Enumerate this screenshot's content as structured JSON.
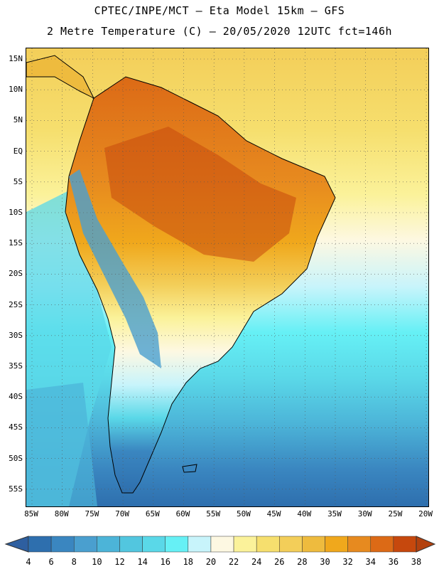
{
  "header": {
    "line1": "CPTEC/INPE/MCT –  Eta Model 15km – GFS",
    "line2": "2 Metre Temperature (C) – 20/05/2020 12UTC fct=146h"
  },
  "map": {
    "lat_labels": [
      "15N",
      "10N",
      "5N",
      "EQ",
      "5S",
      "10S",
      "15S",
      "20S",
      "25S",
      "30S",
      "35S",
      "40S",
      "45S",
      "50S",
      "55S"
    ],
    "lon_labels": [
      "85W",
      "80W",
      "75W",
      "70W",
      "65W",
      "60W",
      "55W",
      "50W",
      "45W",
      "40W",
      "35W",
      "30W",
      "25W",
      "20W"
    ]
  },
  "colorbar": {
    "labels": [
      "4",
      "6",
      "8",
      "10",
      "12",
      "14",
      "16",
      "18",
      "20",
      "22",
      "24",
      "26",
      "28",
      "30",
      "32",
      "34",
      "36",
      "38"
    ],
    "colors": [
      "#2e6fae",
      "#3a86c0",
      "#4a9fcf",
      "#4cb4d8",
      "#52c6df",
      "#5ad8e8",
      "#66f0f5",
      "#c8f4fb",
      "#fdf8e2",
      "#fbf29a",
      "#f6df6e",
      "#f3ce59",
      "#eebb3e",
      "#f0a81c",
      "#e78a1f",
      "#dc6a16",
      "#c6480d"
    ],
    "low_color": "#2e5fa0",
    "high_color": "#b3410e"
  }
}
